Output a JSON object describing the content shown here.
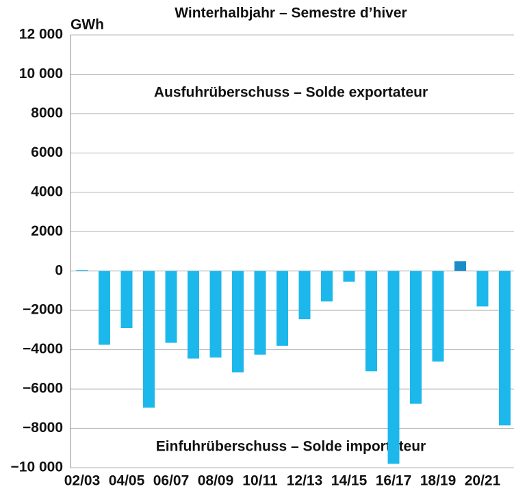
{
  "chart_data": {
    "type": "bar",
    "title": "Winterhalbjahr – Semestre d’hiver",
    "y_label": "GWh",
    "annotations": [
      "Ausfuhrüberschuss – Solde exportateur",
      "Einfuhrüberschuss – Solde importateur"
    ],
    "categories": [
      "02/03",
      null,
      "04/05",
      null,
      "06/07",
      null,
      "08/09",
      null,
      "10/11",
      null,
      "12/13",
      null,
      "14/15",
      null,
      "16/17",
      null,
      "18/19",
      null,
      "20/21",
      null
    ],
    "values": [
      50,
      -3750,
      -2900,
      -6950,
      -3650,
      -4450,
      -4400,
      -5150,
      -4250,
      -3800,
      -2450,
      -1550,
      -550,
      -5100,
      -9800,
      -6750,
      -4600,
      500,
      -1800,
      -7850
    ],
    "colors": [
      "#1cb8ec",
      "#1cb8ec",
      "#1cb8ec",
      "#1cb8ec",
      "#1cb8ec",
      "#1cb8ec",
      "#1cb8ec",
      "#1cb8ec",
      "#1cb8ec",
      "#1cb8ec",
      "#1cb8ec",
      "#1cb8ec",
      "#1cb8ec",
      "#1cb8ec",
      "#1cb8ec",
      "#1cb8ec",
      "#1cb8ec",
      "#1a8cc8",
      "#1cb8ec",
      "#1cb8ec"
    ],
    "ylim": [
      -10000,
      12000
    ],
    "yticks": [
      {
        "value": -10000,
        "label": "−10 000"
      },
      {
        "value": -8000,
        "label": "−8000"
      },
      {
        "value": -6000,
        "label": "−6000"
      },
      {
        "value": -4000,
        "label": "−4000"
      },
      {
        "value": -2000,
        "label": "−2000"
      },
      0,
      2000,
      4000,
      6000,
      8000,
      {
        "value": 10000,
        "label": "10 000"
      },
      {
        "value": 12000,
        "label": "12 000"
      }
    ],
    "grid": true
  }
}
